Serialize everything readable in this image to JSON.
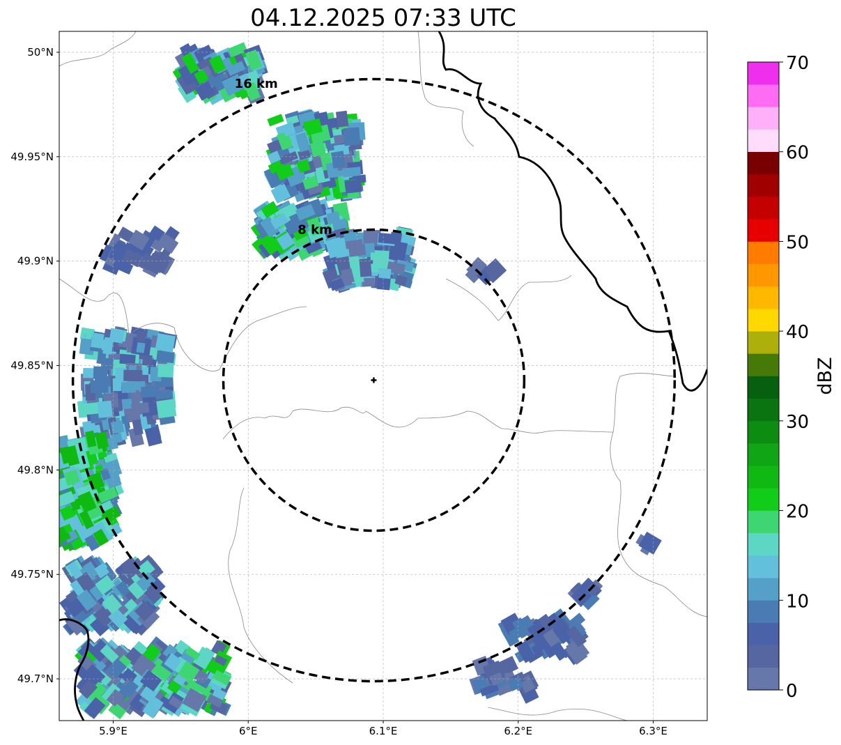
{
  "title": "04.12.2025 07:33 UTC",
  "map": {
    "lon_ticks": [
      {
        "value": 5.9,
        "label": "5.9°E"
      },
      {
        "value": 6.0,
        "label": "6°E"
      },
      {
        "value": 6.1,
        "label": "6.1°E"
      },
      {
        "value": 6.2,
        "label": "6.2°E"
      },
      {
        "value": 6.3,
        "label": "6.3°E"
      }
    ],
    "lat_ticks": [
      {
        "value": 50.0,
        "label": "50°N"
      },
      {
        "value": 49.95,
        "label": "49.95°N"
      },
      {
        "value": 49.9,
        "label": "49.9°N"
      },
      {
        "value": 49.85,
        "label": "49.85°N"
      },
      {
        "value": 49.8,
        "label": "49.8°N"
      },
      {
        "value": 49.75,
        "label": "49.75°N"
      },
      {
        "value": 49.7,
        "label": "49.7°N"
      }
    ],
    "lon_range": [
      5.86,
      6.34
    ],
    "lat_range": [
      49.68,
      50.01
    ],
    "radar_site": {
      "lon": 6.093,
      "lat": 49.843
    },
    "rings": [
      {
        "label": "8 km",
        "radius_km": 8
      },
      {
        "label": "16 km",
        "radius_km": 16
      }
    ],
    "gridlines": true
  },
  "colorbar": {
    "label": "dBZ",
    "ticks": [
      "0",
      "10",
      "20",
      "30",
      "40",
      "50",
      "60",
      "70"
    ],
    "min": 0,
    "max": 70,
    "step": 2.5,
    "colors": [
      "#6677aa",
      "#5566a0",
      "#4a62a8",
      "#4a7bb2",
      "#55a0c8",
      "#62c0dc",
      "#5ed6c6",
      "#3ed672",
      "#12cc1a",
      "#10b812",
      "#0fa514",
      "#0c8c10",
      "#0a7410",
      "#076010",
      "#467a08",
      "#adb00a",
      "#ffd800",
      "#ffb800",
      "#ff9800",
      "#ff7c00",
      "#e60000",
      "#c40000",
      "#a00000",
      "#780000",
      "#ffdcfc",
      "#ffb0f8",
      "#ff6cf4",
      "#ee30ee"
    ]
  }
}
